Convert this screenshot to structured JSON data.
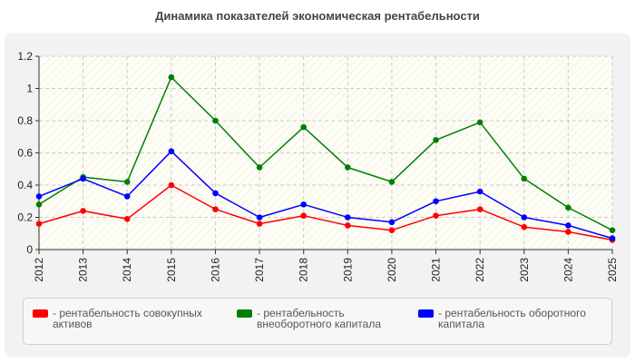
{
  "chart_data": {
    "type": "line",
    "title": "Динамика показателей экономическая рентабельности",
    "xlabel": "",
    "ylabel": "",
    "categories": [
      "2012",
      "2013",
      "2014",
      "2015",
      "2016",
      "2017",
      "2018",
      "2019",
      "2020",
      "2021",
      "2022",
      "2023",
      "2024",
      "2025"
    ],
    "ylim": [
      0,
      1.2
    ],
    "yticks": [
      "0",
      "0.2",
      "0.4",
      "0.6",
      "0.8",
      "1",
      "1.2"
    ],
    "grid": true,
    "legend_position": "bottom",
    "series": [
      {
        "name": "- рентабельность совокупных активов",
        "color": "#ff0000",
        "values": [
          0.16,
          0.24,
          0.19,
          0.4,
          0.25,
          0.16,
          0.21,
          0.15,
          0.12,
          0.21,
          0.25,
          0.14,
          0.11,
          0.06
        ]
      },
      {
        "name": "- рентабельность внеоборотного капитала",
        "color": "#008000",
        "values": [
          0.28,
          0.45,
          0.42,
          1.07,
          0.8,
          0.51,
          0.76,
          0.51,
          0.42,
          0.68,
          0.79,
          0.44,
          0.26,
          0.12
        ]
      },
      {
        "name": "- рентабельность оборотного капитала",
        "color": "#0000ff",
        "values": [
          0.33,
          0.44,
          0.33,
          0.61,
          0.35,
          0.2,
          0.28,
          0.2,
          0.17,
          0.3,
          0.36,
          0.2,
          0.15,
          0.07
        ]
      }
    ]
  }
}
